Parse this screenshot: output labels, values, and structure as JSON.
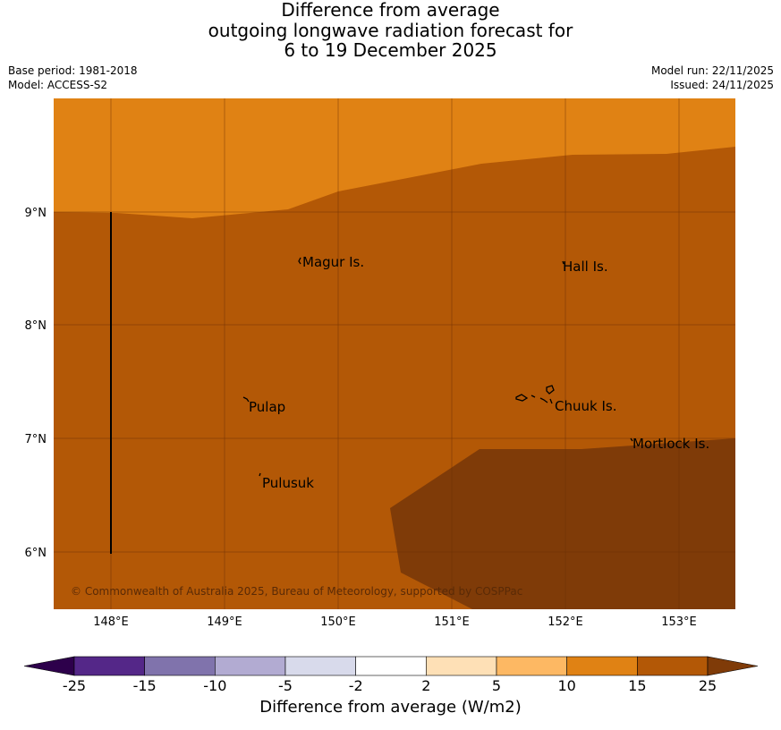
{
  "title": {
    "line1": "Difference from average",
    "line2": "outgoing longwave radiation forecast for",
    "line3": "6 to 19 December 2025"
  },
  "meta": {
    "base_period": "Base period: 1981-2018",
    "model": "Model: ACCESS-S2",
    "model_run": "Model run: 22/11/2025",
    "issued": "Issued: 24/11/2025"
  },
  "map": {
    "lon_ticks": [
      "148°E",
      "149°E",
      "150°E",
      "151°E",
      "152°E",
      "153°E"
    ],
    "lat_ticks": [
      "9°N",
      "8°N",
      "7°N",
      "6°N"
    ],
    "places": [
      "Magur Is.",
      "Hall Is.",
      "Pulap",
      "Chuuk Is.",
      "Mortlock Is.",
      "Pulusuk"
    ],
    "copyright": "© Commonwealth of Australia 2025, Bureau of Meteorology, supported by COSPPac",
    "fill_colors": {
      "10 to 15": "#e08214",
      "15 to 25": "#b35806",
      "above 25": "#7f3b08"
    }
  },
  "colorbar": {
    "label": "Difference from average (W/m2)",
    "ticks": [
      "-25",
      "-15",
      "-10",
      "-5",
      "-2",
      "2",
      "5",
      "10",
      "15",
      "25"
    ],
    "under_color": "#2d004b",
    "over_color": "#7f3b08",
    "colors": [
      "#542788",
      "#8073ac",
      "#b2abd2",
      "#d8daeb",
      "#ffffff",
      "#fee0b6",
      "#fdb863",
      "#e08214",
      "#b35806"
    ]
  }
}
